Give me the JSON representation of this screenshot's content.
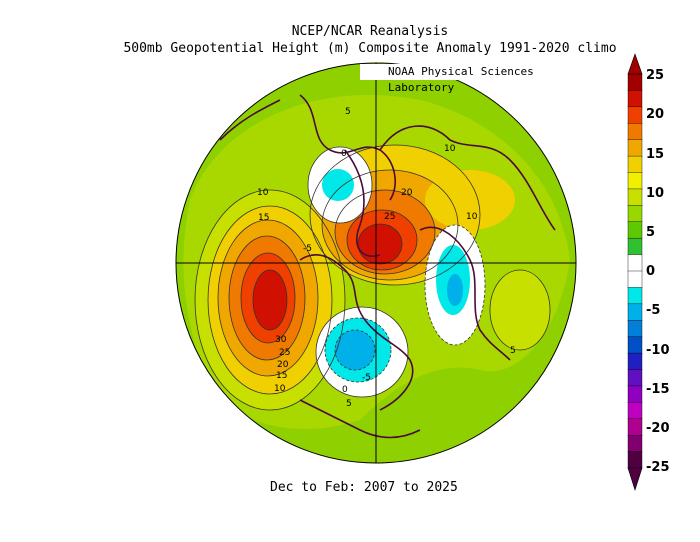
{
  "title_line1": "NCEP/NCAR Reanalysis",
  "title_line2": "500mb Geopotential Height (m) Composite Anomaly 1991-2020 climo",
  "credit": "NOAA Physical Sciences Laboratory",
  "period": "Dec to Feb: 2007 to 2025",
  "map": {
    "projection": "north-polar-stereographic",
    "variable": "500mb geopotential height anomaly",
    "units": "m",
    "contour_labels": [
      "5",
      "0",
      "10",
      "15",
      "20",
      "25",
      "10",
      "-5",
      "30",
      "25",
      "20",
      "15",
      "10",
      "-5",
      "0",
      "5",
      "5",
      "10"
    ]
  },
  "colorbar": {
    "tick_labels": [
      "25",
      "20",
      "15",
      "10",
      "5",
      "0",
      "-5",
      "-10",
      "-15",
      "-20",
      "-25"
    ],
    "colors": [
      "#a00000",
      "#d01000",
      "#f04000",
      "#f07a00",
      "#f0a800",
      "#f0d000",
      "#f0f000",
      "#c8e000",
      "#98d800",
      "#60c800",
      "#30c030",
      "#ffffff",
      "#ffffff",
      "#00e8e8",
      "#00b0e8",
      "#0080d8",
      "#0050c8",
      "#2020c0",
      "#6010c0",
      "#9000c0",
      "#c000c0",
      "#b00090",
      "#800070",
      "#500040"
    ]
  }
}
